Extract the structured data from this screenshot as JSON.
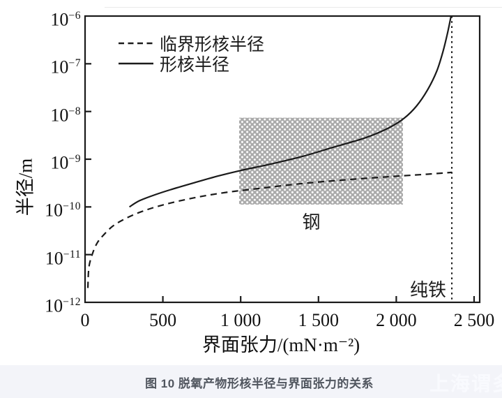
{
  "caption": "图 10 脱氧产物形核半径与界面张力的关系",
  "watermark": "上海谓多",
  "chart_data": {
    "type": "line",
    "title": "",
    "xlabel": "界面张力/(mN·m⁻²)",
    "ylabel": "半径/m",
    "grid": false,
    "legend_position": "upper-left-inside",
    "axis_color": "#1a1a1a",
    "hatch_color": "#aaaaaa",
    "x_axis": {
      "min": 0,
      "max": 2536,
      "ticks": [
        {
          "v": 0,
          "label": "0"
        },
        {
          "v": 500,
          "label": "500"
        },
        {
          "v": 1000,
          "label": "1 000"
        },
        {
          "v": 1500,
          "label": "1 500"
        },
        {
          "v": 2000,
          "label": "2 000"
        },
        {
          "v": 2500,
          "label": "2 500"
        }
      ]
    },
    "y_axis": {
      "scale": "log",
      "top_exp": -6,
      "bottom_exp": -12,
      "ticks": [
        {
          "exp": -6,
          "base": "10",
          "sup": "−6"
        },
        {
          "exp": -7,
          "base": "10",
          "sup": "−7"
        },
        {
          "exp": -8,
          "base": "10",
          "sup": "−8"
        },
        {
          "exp": -9,
          "base": "10",
          "sup": "−9"
        },
        {
          "exp": -10,
          "base": "10",
          "sup": "−10"
        },
        {
          "exp": -11,
          "base": "10",
          "sup": "−11"
        },
        {
          "exp": -12,
          "base": "10",
          "sup": "−12"
        }
      ]
    },
    "series": [
      {
        "name": "临界形核半径",
        "style": "dashed",
        "points": [
          [
            18,
            2e-12
          ],
          [
            25,
            5.5e-12
          ],
          [
            50,
            1.1e-11
          ],
          [
            80,
            1.8e-11
          ],
          [
            120,
            2.6e-11
          ],
          [
            180,
            4e-11
          ],
          [
            260,
            5.7e-11
          ],
          [
            360,
            7.9e-11
          ],
          [
            500,
            1.1e-10
          ],
          [
            700,
            1.55e-10
          ],
          [
            900,
            2e-10
          ],
          [
            1100,
            2.4e-10
          ],
          [
            1400,
            3.1e-10
          ],
          [
            1700,
            3.75e-10
          ],
          [
            2000,
            4.4e-10
          ],
          [
            2200,
            4.85e-10
          ],
          [
            2357,
            5.3e-10
          ]
        ]
      },
      {
        "name": "形核半径",
        "style": "solid",
        "points": [
          [
            285,
            1e-10
          ],
          [
            350,
            1.35e-10
          ],
          [
            450,
            1.8e-10
          ],
          [
            550,
            2.3e-10
          ],
          [
            700,
            3.2e-10
          ],
          [
            850,
            4.4e-10
          ],
          [
            1000,
            5.8e-10
          ],
          [
            1200,
            8e-10
          ],
          [
            1400,
            1.15e-09
          ],
          [
            1600,
            1.8e-09
          ],
          [
            1800,
            2.8e-09
          ],
          [
            1950,
            4.5e-09
          ],
          [
            2050,
            7.2e-09
          ],
          [
            2130,
            1.3e-08
          ],
          [
            2200,
            2.8e-08
          ],
          [
            2260,
            7e-08
          ],
          [
            2300,
            1.8e-07
          ],
          [
            2330,
            4.5e-07
          ],
          [
            2352,
            1e-06
          ]
        ]
      }
    ],
    "annotations": {
      "steel_region": {
        "label": "钢",
        "x0": 990,
        "x1": 2043,
        "v_bottom": 1.12e-10,
        "v_top": 7.4e-09
      },
      "pure_iron_line": {
        "label": "纯铁",
        "x": 2357
      }
    }
  }
}
